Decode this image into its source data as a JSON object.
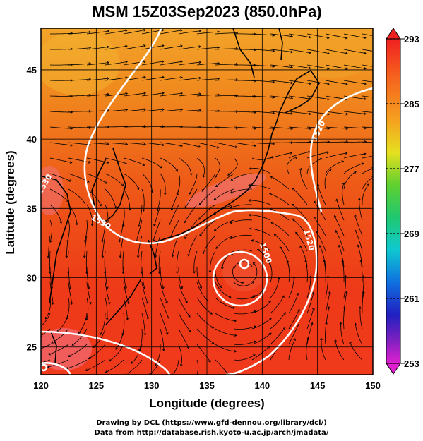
{
  "title": "MSM 15Z03Sep2023 (850.0hPa)",
  "map": {
    "xlabel": "Longitude (degrees)",
    "ylabel": "Latitude  (degrees)",
    "lon_range": [
      120,
      150
    ],
    "lat_range": [
      23,
      48
    ],
    "lon_ticks": [
      "120",
      "125",
      "130",
      "135",
      "140",
      "145",
      "150"
    ],
    "lat_ticks": [
      "25",
      "30",
      "35",
      "40",
      "45"
    ],
    "contour_labels": [
      "1530",
      "1520",
      "1520",
      "1500",
      "1530"
    ]
  },
  "colorbar": {
    "ticks": [
      "293",
      "285",
      "277",
      "269",
      "261",
      "253"
    ],
    "min": 253,
    "max": 293
  },
  "credits": {
    "line1": "Drawing by DCL (https://www.gfd-dennou.org/library/dcl/)",
    "line2": "Data from http://database.rish.kyoto-u.ac.jp/arch/jmadata/"
  }
}
